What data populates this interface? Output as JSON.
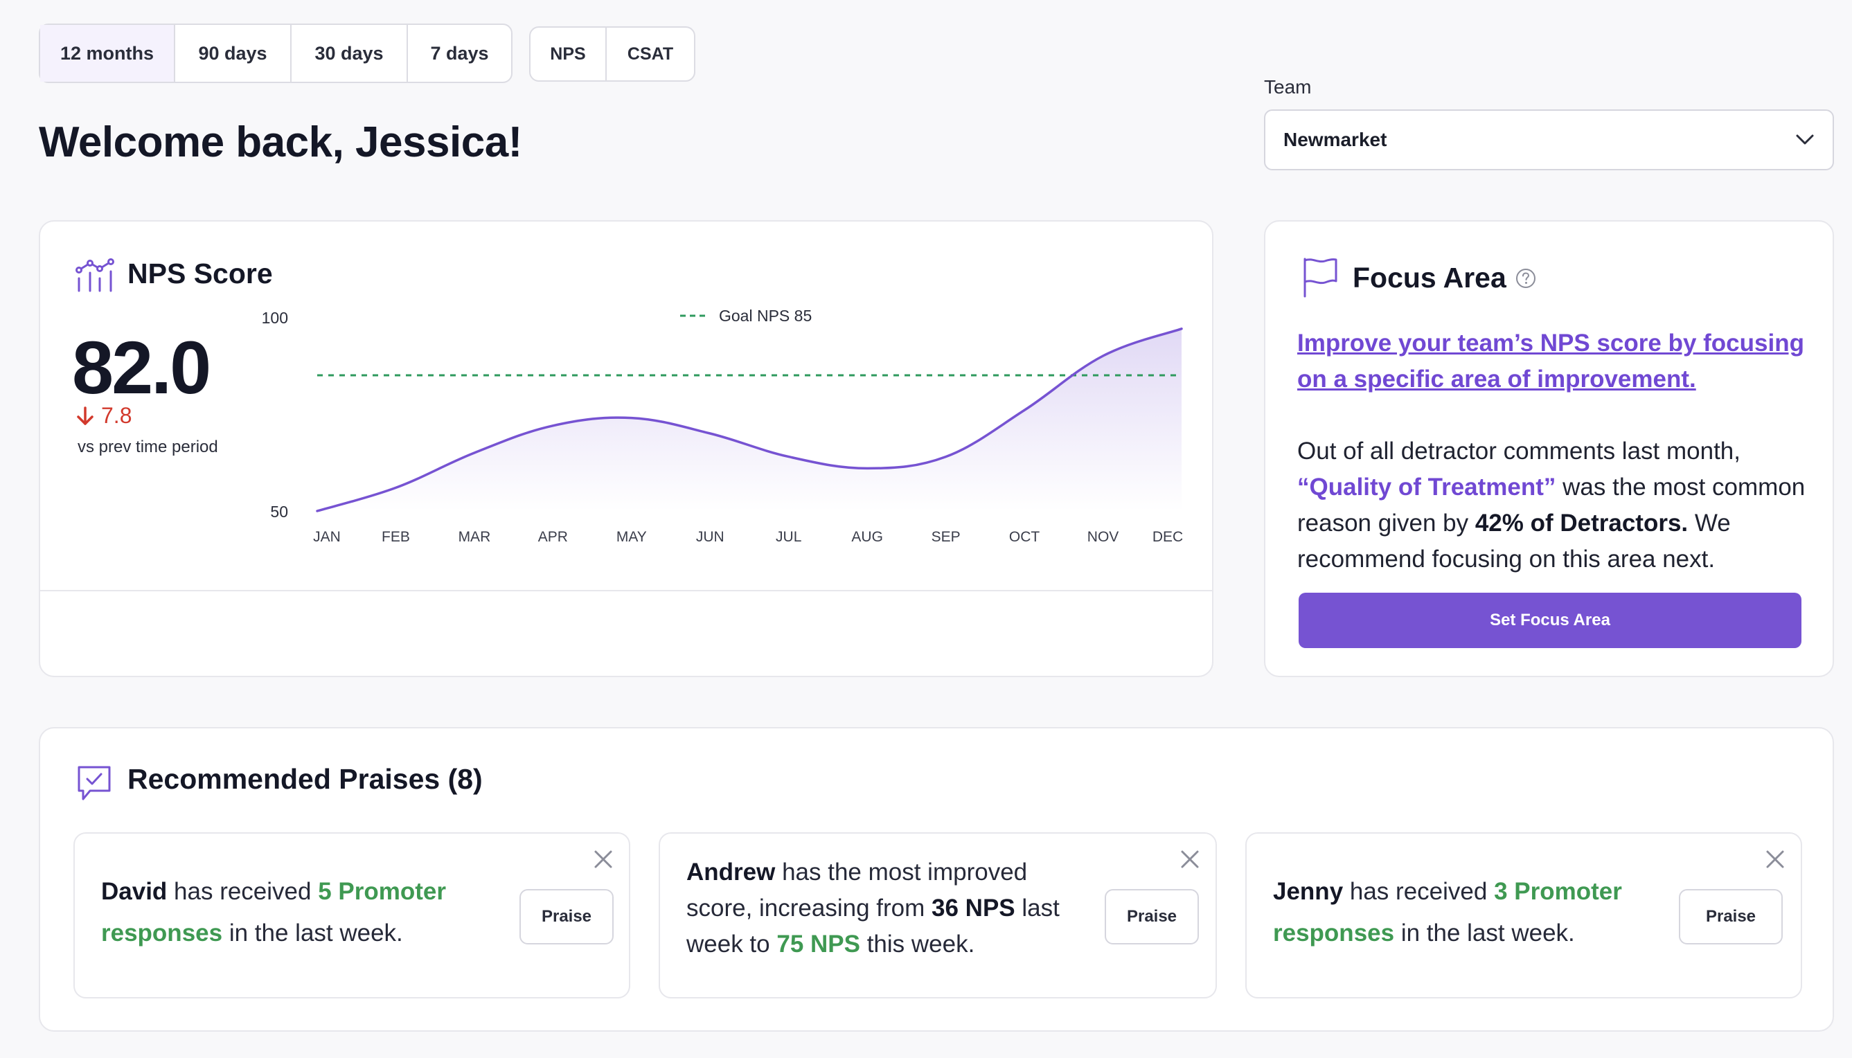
{
  "period_filter": {
    "options": [
      "12 months",
      "90 days",
      "30 days",
      "7 days"
    ],
    "selected": "12 months"
  },
  "metric_filter": {
    "options": [
      "NPS",
      "CSAT"
    ]
  },
  "greeting": "Welcome back, Jessica!",
  "team": {
    "label": "Team",
    "value": "Newmarket"
  },
  "nps_card": {
    "title": "NPS Score",
    "score": "82.0",
    "delta": "7.8",
    "delta_caption": "vs prev time period"
  },
  "chart_data": {
    "type": "area",
    "x": [
      "JAN",
      "FEB",
      "MAR",
      "APR",
      "MAY",
      "JUN",
      "JUL",
      "AUG",
      "SEP",
      "OCT",
      "NOV",
      "DEC"
    ],
    "values": [
      50,
      56,
      65,
      72,
      74,
      70,
      64,
      61,
      64,
      76,
      90,
      97
    ],
    "ylim": [
      50,
      100
    ],
    "yticks": [
      "100",
      "50"
    ],
    "goal": {
      "label": "Goal NPS 85",
      "value": 85
    },
    "colors": {
      "line": "#7653d2",
      "goal": "#2f9a5e"
    }
  },
  "focus_area": {
    "title": "Focus Area",
    "link": "Improve your team’s NPS score by focusing on a specific area of improvement.",
    "body_1": "Out of all detractor comments last month,",
    "highlight": "“Quality of Treatment”",
    "body_2": " was the most common reason given by ",
    "stat": "42% of Detractors.",
    "body_3": " We recommend focusing on this area next.",
    "button": "Set Focus Area"
  },
  "praises": {
    "title": "Recommended Praises (8)",
    "button_label": "Praise",
    "items": [
      {
        "name": "David",
        "t1": " has received ",
        "green1": "5 Promoter responses",
        "t2": " in the last week.",
        "t3": "",
        "green2": "",
        "t4": ""
      },
      {
        "name": "Andrew",
        "t1": " has the most improved score, increasing from ",
        "bold": "36 NPS",
        "t2": " last week to ",
        "green1": "75 NPS",
        "t3": " this week."
      },
      {
        "name": "Jenny",
        "t1": " has received ",
        "green1": "3 Promoter responses",
        "t2": " in the last week."
      }
    ]
  },
  "colors": {
    "accent": "#7653d2",
    "success": "#3f9952",
    "danger": "#d2392c"
  }
}
